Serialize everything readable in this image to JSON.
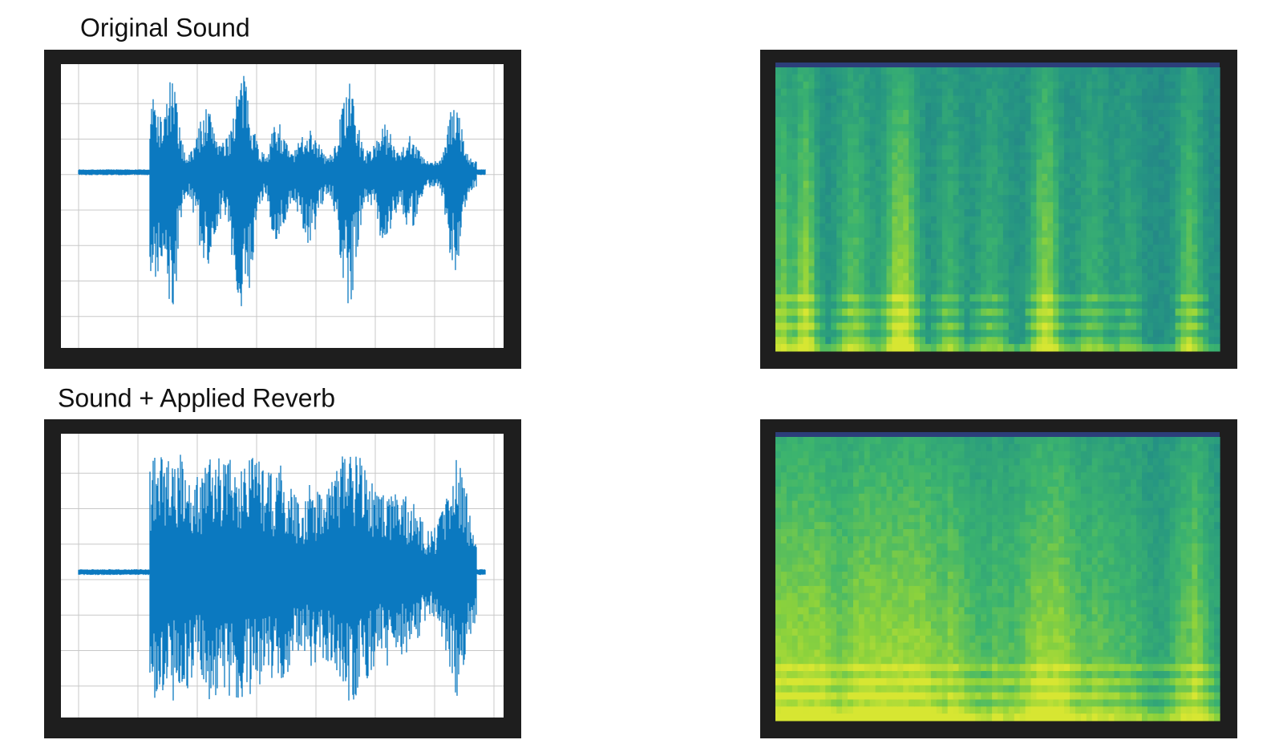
{
  "rows": [
    {
      "title": "Original Sound"
    },
    {
      "title": "Sound + Applied Reverb"
    }
  ]
}
